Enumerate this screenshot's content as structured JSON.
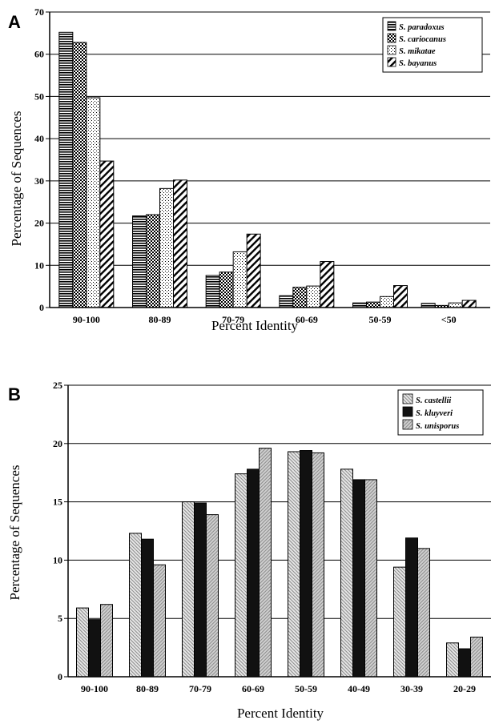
{
  "chart_data": [
    {
      "panel": "A",
      "type": "bar",
      "xlabel": "Percent Identity",
      "ylabel": "Percentage of Sequences",
      "ylim": [
        0,
        70
      ],
      "yticks": [
        0,
        10,
        20,
        30,
        40,
        50,
        60,
        70
      ],
      "grid": true,
      "legend_position": "top-right",
      "categories": [
        "90-100",
        "80-89",
        "70-79",
        "60-69",
        "50-59",
        "<50"
      ],
      "series": [
        {
          "name": "S. paradoxus",
          "pattern": "hlines",
          "values": [
            65.2,
            21.7,
            7.6,
            2.8,
            1.1,
            1.0
          ]
        },
        {
          "name": "S. cariocanus",
          "pattern": "checker",
          "values": [
            62.8,
            22.0,
            8.4,
            4.8,
            1.3,
            0.5
          ]
        },
        {
          "name": "S. mikatae",
          "pattern": "dots",
          "values": [
            49.7,
            28.2,
            13.2,
            5.1,
            2.6,
            1.1
          ]
        },
        {
          "name": "S. bayanus",
          "pattern": "diag",
          "values": [
            34.7,
            30.2,
            17.4,
            10.9,
            5.2,
            1.7
          ]
        }
      ]
    },
    {
      "panel": "B",
      "type": "bar",
      "xlabel": "Percent Identity",
      "ylabel": "Percentage of Sequences",
      "ylim": [
        0,
        25
      ],
      "yticks": [
        0,
        5,
        10,
        15,
        20,
        25
      ],
      "grid": true,
      "legend_position": "top-right",
      "categories": [
        "90-100",
        "80-89",
        "70-79",
        "60-69",
        "50-59",
        "40-49",
        "30-39",
        "20-29"
      ],
      "series": [
        {
          "name": "S. castellii",
          "pattern": "hatch-light",
          "values": [
            5.9,
            12.3,
            15.0,
            17.4,
            19.3,
            17.8,
            9.4,
            2.9
          ]
        },
        {
          "name": "S. kluyveri",
          "pattern": "solid-black",
          "values": [
            4.9,
            11.8,
            14.9,
            17.8,
            19.4,
            16.9,
            11.9,
            2.4
          ]
        },
        {
          "name": "S. unisporus",
          "pattern": "hatch-gray",
          "values": [
            6.2,
            9.6,
            13.9,
            19.6,
            19.2,
            16.9,
            11.0,
            3.4
          ]
        }
      ]
    }
  ]
}
